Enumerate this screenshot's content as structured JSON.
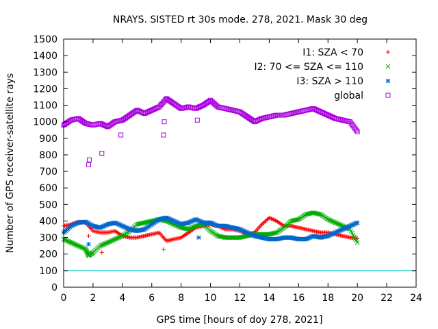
{
  "chart_data": {
    "type": "scatter",
    "title": "NRAYS. SISTED rt 30s mode. 278, 2021. Mask 30 deg",
    "xlabel": "GPS time [hours of doy 278, 2021]",
    "ylabel": "Number of GPS receiver-satellite rays",
    "xlim": [
      0,
      24
    ],
    "ylim": [
      0,
      1500
    ],
    "x_ticks": [
      0,
      2,
      4,
      6,
      8,
      10,
      12,
      14,
      16,
      18,
      20,
      22,
      24
    ],
    "y_ticks": [
      0,
      100,
      200,
      300,
      400,
      500,
      600,
      700,
      800,
      900,
      1000,
      1100,
      1200,
      1300,
      1400,
      1500
    ],
    "grid": false,
    "legend_position": "top-right",
    "reference_line": {
      "y": 100,
      "color": "#00cccc"
    },
    "series": [
      {
        "name": "I1: SZA < 70",
        "color": "#ff0000",
        "marker": "+",
        "x": [
          0.0,
          0.5,
          1.0,
          1.5,
          2.0,
          2.5,
          3.0,
          3.5,
          4.0,
          4.5,
          5.0,
          5.5,
          6.0,
          6.5,
          7.0,
          7.5,
          8.0,
          8.5,
          9.0,
          9.5,
          10.0,
          10.5,
          11.0,
          11.5,
          12.0,
          12.5,
          13.0,
          13.5,
          14.0,
          14.5,
          15.0,
          15.5,
          16.0,
          16.5,
          17.0,
          17.5,
          18.0,
          18.5,
          19.0,
          19.5,
          20.0,
          1.7,
          2.6,
          6.8
        ],
        "y": [
          370,
          380,
          395,
          390,
          340,
          330,
          330,
          340,
          310,
          300,
          300,
          310,
          320,
          330,
          280,
          290,
          300,
          330,
          360,
          370,
          380,
          370,
          350,
          350,
          340,
          320,
          330,
          380,
          420,
          400,
          370,
          370,
          360,
          350,
          340,
          330,
          330,
          320,
          310,
          300,
          295,
          310,
          210,
          230
        ]
      },
      {
        "name": "I2: 70 <= SZA <= 110",
        "color": "#00aa00",
        "marker": "x",
        "x": [
          0.0,
          0.5,
          1.0,
          1.5,
          1.7,
          2.0,
          2.5,
          3.0,
          3.5,
          4.0,
          4.5,
          5.0,
          5.5,
          6.0,
          6.5,
          7.0,
          7.5,
          8.0,
          8.5,
          9.0,
          9.5,
          10.0,
          10.5,
          11.0,
          11.5,
          12.0,
          12.5,
          13.0,
          13.5,
          14.0,
          14.5,
          15.0,
          15.5,
          16.0,
          16.5,
          17.0,
          17.5,
          18.0,
          18.5,
          19.0,
          19.5,
          20.0
        ],
        "y": [
          290,
          270,
          250,
          230,
          190,
          210,
          250,
          270,
          290,
          310,
          340,
          380,
          390,
          400,
          410,
          400,
          380,
          360,
          350,
          370,
          380,
          340,
          310,
          300,
          300,
          300,
          310,
          320,
          320,
          320,
          330,
          360,
          400,
          410,
          440,
          450,
          440,
          410,
          390,
          370,
          350,
          270
        ]
      },
      {
        "name": "I3: SZA > 110",
        "color": "#0066cc",
        "marker": "*",
        "x": [
          0.0,
          0.5,
          1.0,
          1.5,
          2.0,
          2.5,
          3.0,
          3.5,
          4.0,
          4.5,
          5.0,
          5.5,
          6.0,
          6.5,
          7.0,
          7.5,
          8.0,
          8.5,
          9.0,
          9.5,
          10.0,
          10.5,
          11.0,
          11.5,
          12.0,
          12.5,
          13.0,
          13.5,
          14.0,
          14.5,
          15.0,
          15.5,
          16.0,
          16.5,
          17.0,
          17.5,
          18.0,
          18.5,
          19.0,
          19.5,
          20.0,
          1.7,
          9.2
        ],
        "y": [
          330,
          370,
          390,
          395,
          370,
          360,
          380,
          390,
          370,
          350,
          340,
          350,
          380,
          410,
          420,
          400,
          380,
          390,
          410,
          390,
          390,
          370,
          370,
          360,
          350,
          330,
          310,
          300,
          290,
          290,
          300,
          300,
          290,
          290,
          310,
          300,
          310,
          330,
          350,
          370,
          390,
          260,
          300
        ]
      },
      {
        "name": "global",
        "color": "#aa00dd",
        "marker": "square",
        "x": [
          0.0,
          0.5,
          1.0,
          1.5,
          2.0,
          2.5,
          3.0,
          3.5,
          4.0,
          4.5,
          5.0,
          5.5,
          6.0,
          6.5,
          7.0,
          7.5,
          8.0,
          8.5,
          9.0,
          9.5,
          10.0,
          10.5,
          11.0,
          11.5,
          12.0,
          12.5,
          13.0,
          13.5,
          14.0,
          14.5,
          15.0,
          15.5,
          16.0,
          16.5,
          17.0,
          17.5,
          18.0,
          18.5,
          19.0,
          19.5,
          20.0,
          1.7,
          1.75,
          2.6,
          3.9,
          6.8,
          6.85,
          9.1
        ],
        "y": [
          980,
          1010,
          1020,
          990,
          980,
          990,
          970,
          1000,
          1010,
          1040,
          1070,
          1050,
          1070,
          1090,
          1140,
          1110,
          1080,
          1090,
          1080,
          1100,
          1130,
          1090,
          1080,
          1070,
          1060,
          1030,
          1000,
          1020,
          1030,
          1040,
          1040,
          1050,
          1060,
          1070,
          1080,
          1060,
          1040,
          1020,
          1010,
          1000,
          940,
          740,
          770,
          810,
          920,
          920,
          1000,
          1010
        ]
      }
    ]
  }
}
